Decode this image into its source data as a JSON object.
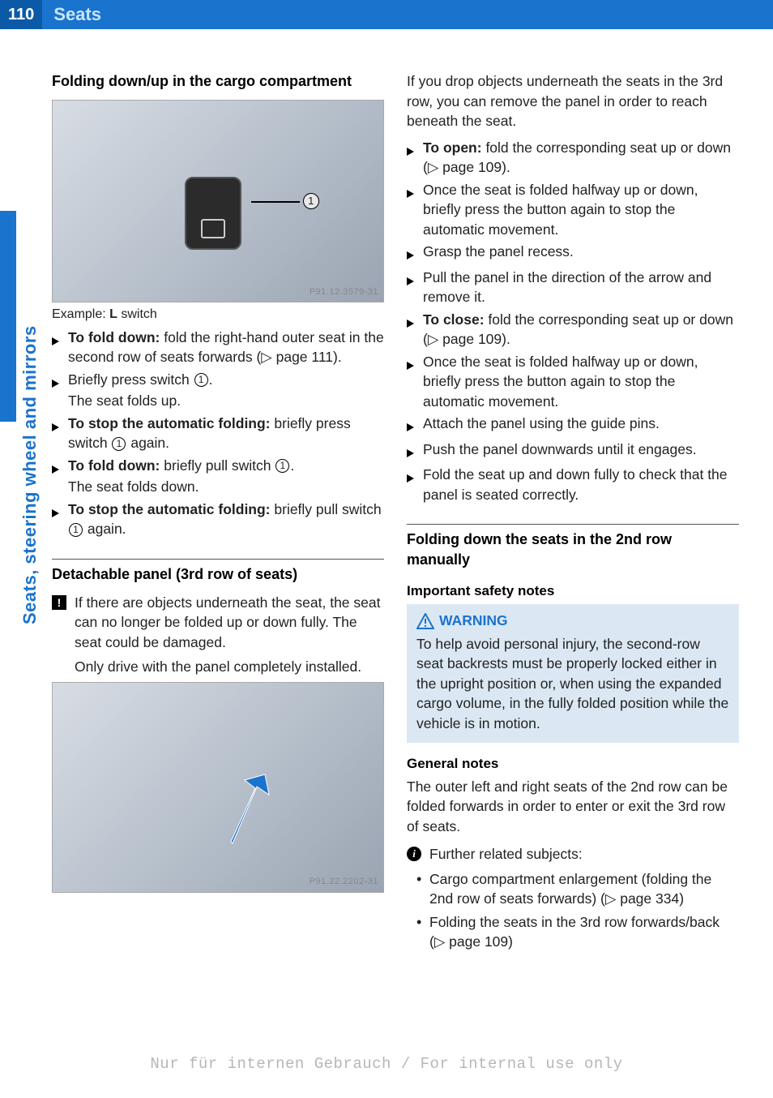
{
  "header": {
    "page_number": "110",
    "chapter": "Seats"
  },
  "side_tab": "Seats, steering wheel and mirrors",
  "colors": {
    "brand_blue": "#1a73cc",
    "dark_blue": "#0b5aa8",
    "warn_bg": "#dbe8f4",
    "text": "#222222",
    "footer": "#b7b7b7"
  },
  "left": {
    "section1_title": "Folding down/up in the cargo compartment",
    "fig1_caption_prefix": "Example: ",
    "fig1_caption_bold": "L",
    "fig1_caption_suffix": " switch",
    "fig1_watermark": "P91.12.3579-31",
    "steps1": [
      {
        "bold": "To fold down:",
        "rest": " fold the right-hand outer seat in the second row of seats forwards (▷ page 111)."
      },
      {
        "rest": "Briefly press switch ①.",
        "sub": "The seat folds up."
      },
      {
        "bold": "To stop the automatic folding:",
        "rest": " briefly press switch ① again."
      },
      {
        "bold": "To fold down:",
        "rest": " briefly pull switch ①.",
        "sub": "The seat folds down."
      },
      {
        "bold": "To stop the automatic folding:",
        "rest": " briefly pull switch ① again."
      }
    ],
    "section2_title": "Detachable panel (3rd row of seats)",
    "note_para1": "If there are objects underneath the seat, the seat can no longer be folded up or down fully. The seat could be damaged.",
    "note_para2": "Only drive with the panel completely installed.",
    "fig2_watermark": "P91.22.2202-31"
  },
  "right": {
    "intro": "If you drop objects underneath the seats in the 3rd row, you can remove the panel in order to reach beneath the seat.",
    "steps2": [
      {
        "bold": "To open:",
        "rest": " fold the corresponding seat up or down (▷ page 109)."
      },
      {
        "rest": "Once the seat is folded halfway up or down, briefly press the button again to stop the automatic movement."
      },
      {
        "rest": "Grasp the panel recess."
      },
      {
        "rest": "Pull the panel in the direction of the arrow and remove it."
      },
      {
        "bold": "To close:",
        "rest": " fold the corresponding seat up or down (▷ page 109)."
      },
      {
        "rest": "Once the seat is folded halfway up or down, briefly press the button again to stop the automatic movement."
      },
      {
        "rest": "Attach the panel using the guide pins."
      },
      {
        "rest": "Push the panel downwards until it engages."
      },
      {
        "rest": "Fold the seat up and down fully to check that the panel is seated correctly."
      }
    ],
    "section3_title": "Folding down the seats in the 2nd row manually",
    "sub_safety": "Important safety notes",
    "warn_label": "WARNING",
    "warn_body": "To help avoid personal injury, the second-row seat backrests must be properly locked either in the upright position or, when using the expanded cargo volume, in the fully folded position while the vehicle is in motion.",
    "sub_general": "General notes",
    "general_body": "The outer left and right seats of the 2nd row can be folded forwards in order to enter or exit the 3rd row of seats.",
    "info_lead": "Further related subjects:",
    "bullets": [
      "Cargo compartment enlargement (folding the 2nd row of seats forwards) (▷ page 334)",
      "Folding the seats in the 3rd row forwards/back (▷ page 109)"
    ]
  },
  "footer": "Nur für internen Gebrauch / For internal use only"
}
